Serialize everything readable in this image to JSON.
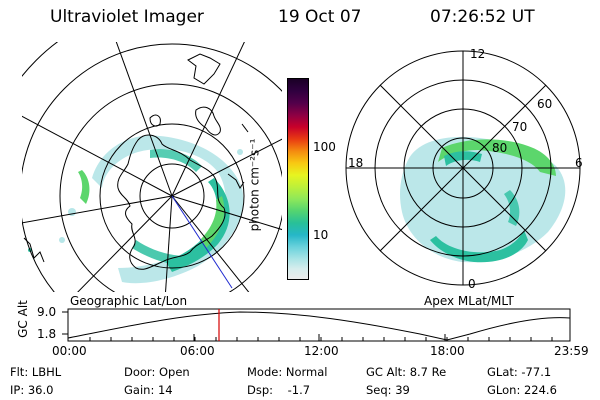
{
  "header": {
    "title": "Ultraviolet Imager",
    "date": "19 Oct 07",
    "time": "07:26:52 UT"
  },
  "colorbar": {
    "unit_label": "photon cm⁻²s⁻¹",
    "tick_100": "100",
    "tick_10": "10"
  },
  "geo_plot": {
    "label": "Geographic Lat/Lon"
  },
  "apex_plot": {
    "label": "Apex MLat/MLT",
    "mlt_12": "12",
    "mlt_18": "18",
    "mlt_6": "6",
    "mlt_0": "0",
    "lat_60": "60",
    "lat_70": "70",
    "lat_80": "80"
  },
  "timeline": {
    "y_title": "GC Alt",
    "y_max": "9.0",
    "y_min": "1.8",
    "ticks": [
      "00:00",
      "06:00",
      "12:00",
      "18:00",
      "23:59"
    ],
    "current_marker_time": "07:26:52"
  },
  "info": {
    "flt": "Flt: LBHL",
    "ip": "IP: 36.0",
    "door": "Door: Open",
    "gain": "Gain: 14",
    "mode": "Mode: Normal",
    "dsp": "Dsp:    -1.7",
    "gcalt": "GC Alt: 8.7 Re",
    "seq": "Seq: 39",
    "glat": "GLat: -77.1",
    "glon": "GLon: 224.6"
  },
  "colors": {
    "low_cyan": "#b7e6e8",
    "mid_teal": "#2cc0a0",
    "high_green": "#5cd66c",
    "marker_red": "#d40000"
  }
}
